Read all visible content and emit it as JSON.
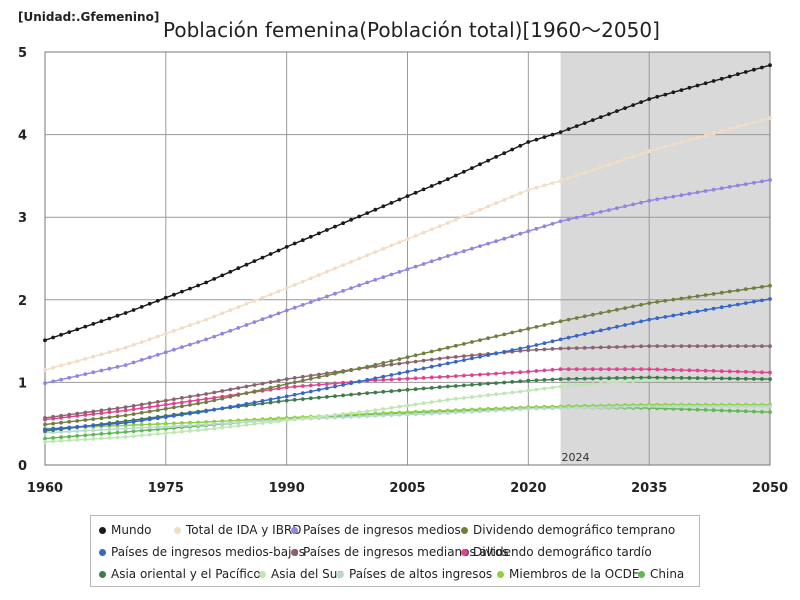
{
  "unit_label": "[Unidad:.Gfemenino]",
  "chart_data": {
    "type": "line",
    "title": "Población femenina(Población total)[1960～2050]",
    "xlabel": "",
    "ylabel": "",
    "xlim": [
      1960,
      2050
    ],
    "ylim": [
      0,
      5
    ],
    "x_ticks": [
      1960,
      1975,
      1990,
      2005,
      2020,
      2035,
      2050
    ],
    "y_ticks": [
      0,
      1,
      2,
      3,
      4,
      5
    ],
    "grid": true,
    "projection_start": 2024,
    "projection_label": "2024",
    "series": [
      {
        "name": "Mundo",
        "color": "#1a1a1a",
        "points": [
          [
            1960,
            1.51
          ],
          [
            1970,
            1.84
          ],
          [
            1980,
            2.21
          ],
          [
            1990,
            2.64
          ],
          [
            2000,
            3.05
          ],
          [
            2010,
            3.46
          ],
          [
            2020,
            3.91
          ],
          [
            2024,
            4.03
          ],
          [
            2035,
            4.43
          ],
          [
            2050,
            4.84
          ]
        ]
      },
      {
        "name": "Total de IDA y IBRD",
        "color": "#f3dcc6",
        "points": [
          [
            1960,
            1.15
          ],
          [
            1970,
            1.42
          ],
          [
            1980,
            1.76
          ],
          [
            1990,
            2.14
          ],
          [
            2000,
            2.54
          ],
          [
            2010,
            2.93
          ],
          [
            2020,
            3.33
          ],
          [
            2024,
            3.44
          ],
          [
            2035,
            3.8
          ],
          [
            2050,
            4.2
          ]
        ]
      },
      {
        "name": "Países de ingresos medios",
        "color": "#8f86de",
        "points": [
          [
            1960,
            0.99
          ],
          [
            1970,
            1.21
          ],
          [
            1980,
            1.52
          ],
          [
            1990,
            1.87
          ],
          [
            2000,
            2.21
          ],
          [
            2010,
            2.53
          ],
          [
            2020,
            2.83
          ],
          [
            2024,
            2.95
          ],
          [
            2035,
            3.2
          ],
          [
            2050,
            3.45
          ]
        ]
      },
      {
        "name": "Dividendo demográfico temprano",
        "color": "#6f7f3e",
        "points": [
          [
            1960,
            0.49
          ],
          [
            1970,
            0.6
          ],
          [
            1980,
            0.76
          ],
          [
            1990,
            0.98
          ],
          [
            2000,
            1.19
          ],
          [
            2010,
            1.42
          ],
          [
            2020,
            1.65
          ],
          [
            2024,
            1.74
          ],
          [
            2035,
            1.96
          ],
          [
            2050,
            2.17
          ]
        ]
      },
      {
        "name": "Países de ingresos medios-bajos",
        "color": "#3566c8",
        "points": [
          [
            1960,
            0.43
          ],
          [
            1970,
            0.51
          ],
          [
            1980,
            0.65
          ],
          [
            1990,
            0.83
          ],
          [
            2000,
            1.03
          ],
          [
            2010,
            1.23
          ],
          [
            2020,
            1.43
          ],
          [
            2024,
            1.52
          ],
          [
            2035,
            1.76
          ],
          [
            2050,
            2.01
          ]
        ]
      },
      {
        "name": "Países de ingresos medianos altos",
        "color": "#8c6270",
        "points": [
          [
            1960,
            0.57
          ],
          [
            1970,
            0.7
          ],
          [
            1980,
            0.86
          ],
          [
            1990,
            1.04
          ],
          [
            2000,
            1.18
          ],
          [
            2010,
            1.3
          ],
          [
            2020,
            1.39
          ],
          [
            2024,
            1.41
          ],
          [
            2035,
            1.44
          ],
          [
            2050,
            1.44
          ]
        ]
      },
      {
        "name": "Dividendo demográfico tardío",
        "color": "#e0438f",
        "points": [
          [
            1960,
            0.55
          ],
          [
            1970,
            0.66
          ],
          [
            1980,
            0.8
          ],
          [
            1990,
            0.94
          ],
          [
            2000,
            1.02
          ],
          [
            2010,
            1.07
          ],
          [
            2020,
            1.13
          ],
          [
            2024,
            1.16
          ],
          [
            2035,
            1.16
          ],
          [
            2050,
            1.12
          ]
        ]
      },
      {
        "name": "Asia oriental y el Pacífico",
        "color": "#3f7a4a",
        "points": [
          [
            1960,
            0.41
          ],
          [
            1970,
            0.53
          ],
          [
            1980,
            0.66
          ],
          [
            1990,
            0.78
          ],
          [
            2000,
            0.87
          ],
          [
            2010,
            0.95
          ],
          [
            2020,
            1.02
          ],
          [
            2024,
            1.04
          ],
          [
            2035,
            1.06
          ],
          [
            2050,
            1.04
          ]
        ]
      },
      {
        "name": "Asia del Sur",
        "color": "#bfe6b4",
        "points": [
          [
            1960,
            0.28
          ],
          [
            1970,
            0.34
          ],
          [
            1980,
            0.43
          ],
          [
            1990,
            0.54
          ],
          [
            2000,
            0.65
          ],
          [
            2010,
            0.79
          ],
          [
            2020,
            0.9
          ],
          [
            2024,
            0.95
          ],
          [
            2035,
            1.03
          ],
          [
            2050,
            1.05
          ]
        ]
      },
      {
        "name": "Países de altos ingresos",
        "color": "#b9d8d0",
        "points": [
          [
            1960,
            0.39
          ],
          [
            1970,
            0.44
          ],
          [
            1980,
            0.49
          ],
          [
            1990,
            0.55
          ],
          [
            2000,
            0.59
          ],
          [
            2010,
            0.63
          ],
          [
            2020,
            0.68
          ],
          [
            2024,
            0.69
          ],
          [
            2035,
            0.71
          ],
          [
            2050,
            0.71
          ]
        ]
      },
      {
        "name": "Miembros de la OCDE",
        "color": "#8ed13a",
        "points": [
          [
            1960,
            0.44
          ],
          [
            1970,
            0.48
          ],
          [
            1980,
            0.52
          ],
          [
            1990,
            0.57
          ],
          [
            2000,
            0.62
          ],
          [
            2010,
            0.66
          ],
          [
            2020,
            0.7
          ],
          [
            2024,
            0.71
          ],
          [
            2035,
            0.73
          ],
          [
            2050,
            0.73
          ]
        ]
      },
      {
        "name": "China",
        "color": "#5fb852",
        "points": [
          [
            1960,
            0.32
          ],
          [
            1970,
            0.4
          ],
          [
            1980,
            0.48
          ],
          [
            1990,
            0.56
          ],
          [
            2000,
            0.61
          ],
          [
            2010,
            0.65
          ],
          [
            2020,
            0.69
          ],
          [
            2024,
            0.7
          ],
          [
            2035,
            0.69
          ],
          [
            2050,
            0.64
          ]
        ]
      }
    ]
  }
}
